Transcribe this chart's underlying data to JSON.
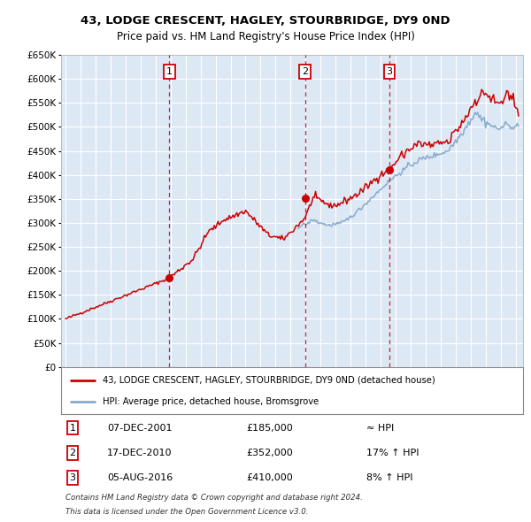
{
  "title": "43, LODGE CRESCENT, HAGLEY, STOURBRIDGE, DY9 0ND",
  "subtitle": "Price paid vs. HM Land Registry's House Price Index (HPI)",
  "legend_line1": "43, LODGE CRESCENT, HAGLEY, STOURBRIDGE, DY9 0ND (detached house)",
  "legend_line2": "HPI: Average price, detached house, Bromsgrove",
  "sales": [
    {
      "num": 1,
      "date": "07-DEC-2001",
      "price": 185000,
      "year": 2001.92,
      "hpi_diff": "≈ HPI"
    },
    {
      "num": 2,
      "date": "17-DEC-2010",
      "price": 352000,
      "year": 2010.96,
      "hpi_diff": "17% ↑ HPI"
    },
    {
      "num": 3,
      "date": "05-AUG-2016",
      "price": 410000,
      "year": 2016.59,
      "hpi_diff": "8% ↑ HPI"
    }
  ],
  "footnote1": "Contains HM Land Registry data © Crown copyright and database right 2024.",
  "footnote2": "This data is licensed under the Open Government Licence v3.0.",
  "ylim": [
    0,
    650000
  ],
  "yticks": [
    0,
    50000,
    100000,
    150000,
    200000,
    250000,
    300000,
    350000,
    400000,
    450000,
    500000,
    550000,
    600000,
    650000
  ],
  "xmin": 1994.7,
  "xmax": 2025.5,
  "bg_color": "#dde8f5",
  "grid_color": "#ffffff",
  "red_line_color": "#cc0000",
  "blue_line_color": "#88aacc",
  "sale_marker_color": "#cc0000",
  "vline_color": "#cc0000",
  "blue_start_year": 2010.5
}
